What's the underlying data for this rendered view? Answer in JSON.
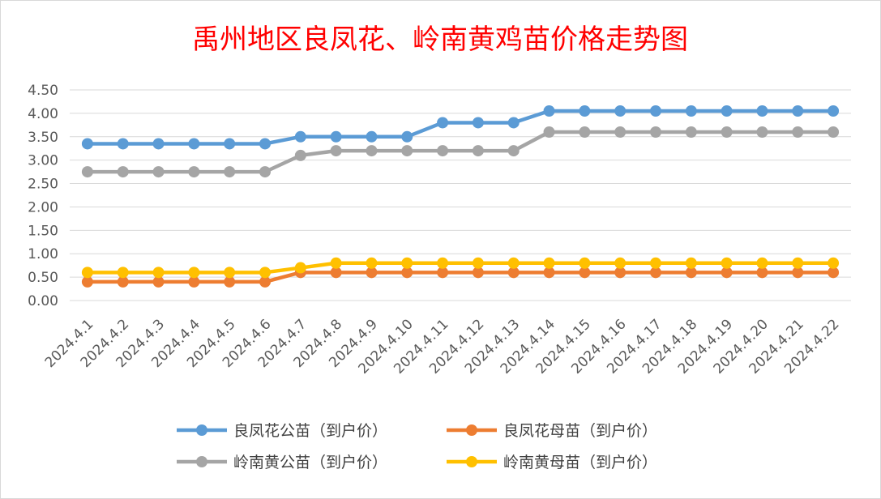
{
  "chart_data": {
    "type": "line",
    "title": "禹州地区良凤花、岭南黄鸡苗价格走势图",
    "xlabel": "",
    "ylabel": "",
    "categories": [
      "2024.4.1",
      "2024.4.2",
      "2024.4.3",
      "2024.4.4",
      "2024.4.5",
      "2024.4.6",
      "2024.4.7",
      "2024.4.8",
      "2024.4.9",
      "2024.4.10",
      "2024.4.11",
      "2024.4.12",
      "2024.4.13",
      "2024.4.14",
      "2024.4.15",
      "2024.4.16",
      "2024.4.17",
      "2024.4.18",
      "2024.4.19",
      "2024.4.20",
      "2024.4.21",
      "2024.4.22"
    ],
    "ylim": [
      0,
      4.5
    ],
    "yticks": [
      "0.00",
      "0.50",
      "1.00",
      "1.50",
      "2.00",
      "2.50",
      "3.00",
      "3.50",
      "4.00",
      "4.50"
    ],
    "grid": "horizontal",
    "legend_position": "bottom",
    "series": [
      {
        "name": "良凤花公苗（到户价）",
        "color": "#5b9bd5",
        "values": [
          3.35,
          3.35,
          3.35,
          3.35,
          3.35,
          3.35,
          3.5,
          3.5,
          3.5,
          3.5,
          3.8,
          3.8,
          3.8,
          4.05,
          4.05,
          4.05,
          4.05,
          4.05,
          4.05,
          4.05,
          4.05,
          4.05
        ]
      },
      {
        "name": "良凤花母苗（到户价）",
        "color": "#ed7d31",
        "values": [
          0.4,
          0.4,
          0.4,
          0.4,
          0.4,
          0.4,
          0.6,
          0.6,
          0.6,
          0.6,
          0.6,
          0.6,
          0.6,
          0.6,
          0.6,
          0.6,
          0.6,
          0.6,
          0.6,
          0.6,
          0.6,
          0.6
        ]
      },
      {
        "name": "岭南黄公苗（到户价）",
        "color": "#a5a5a5",
        "values": [
          2.75,
          2.75,
          2.75,
          2.75,
          2.75,
          2.75,
          3.1,
          3.2,
          3.2,
          3.2,
          3.2,
          3.2,
          3.2,
          3.6,
          3.6,
          3.6,
          3.6,
          3.6,
          3.6,
          3.6,
          3.6,
          3.6
        ]
      },
      {
        "name": "岭南黄母苗（到户价）",
        "color": "#ffc000",
        "values": [
          0.6,
          0.6,
          0.6,
          0.6,
          0.6,
          0.6,
          0.7,
          0.8,
          0.8,
          0.8,
          0.8,
          0.8,
          0.8,
          0.8,
          0.8,
          0.8,
          0.8,
          0.8,
          0.8,
          0.8,
          0.8,
          0.8
        ]
      }
    ]
  }
}
